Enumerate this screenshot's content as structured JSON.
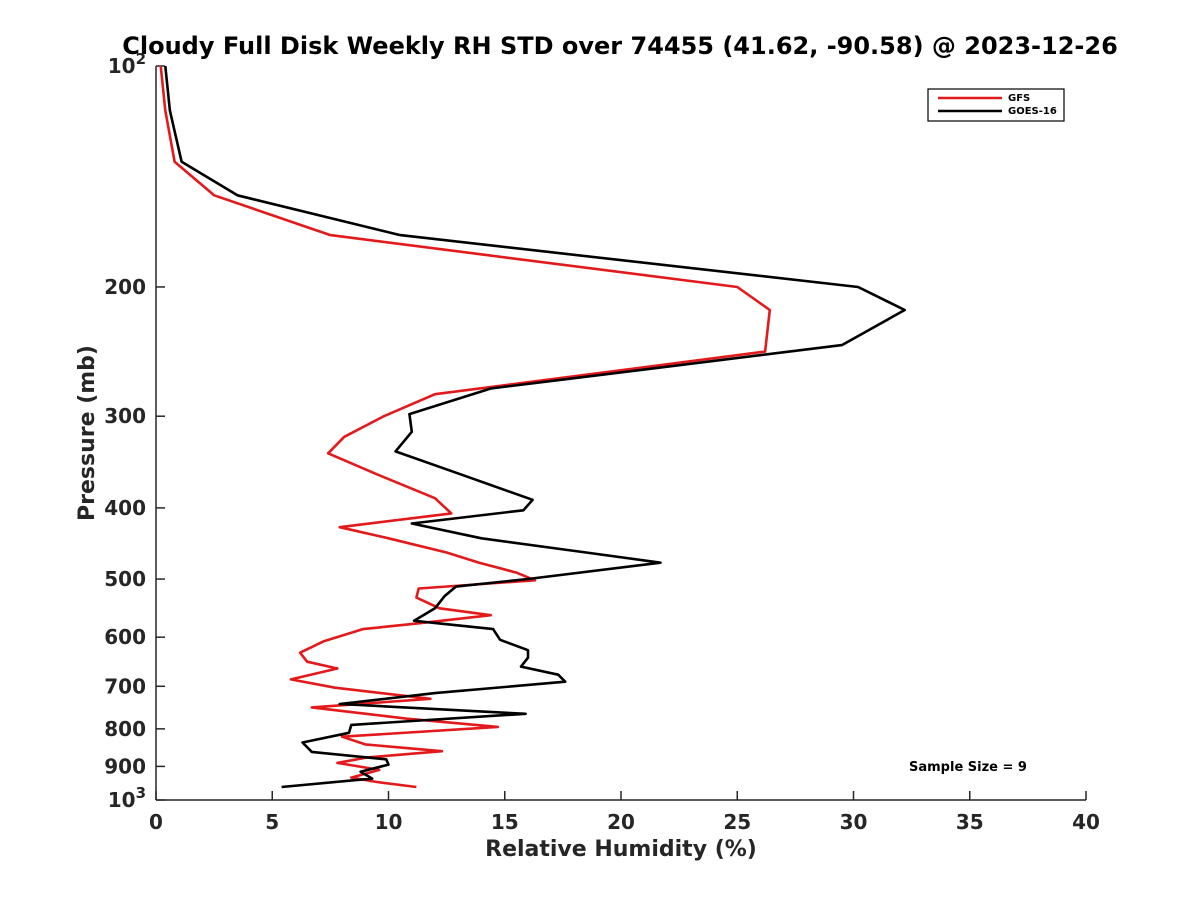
{
  "chart_data": {
    "type": "line",
    "title": "Cloudy Full Disk Weekly RH STD over 74455 (41.62, -90.58) @ 2023-12-26",
    "xlabel": "Relative Humidity (%)",
    "ylabel": "Pressure (mb)",
    "xlim": [
      0,
      40
    ],
    "ylim": [
      100,
      1000
    ],
    "yscale": "log",
    "y_reversed": true,
    "grid": false,
    "legend_position": "top-right",
    "x_ticks": [
      "0",
      "5",
      "10",
      "15",
      "20",
      "25",
      "30",
      "35",
      "40"
    ],
    "y_ticks": [
      {
        "value": 100,
        "base": "10",
        "exp": "2"
      },
      {
        "value": 200,
        "label": "200"
      },
      {
        "value": 300,
        "label": "300"
      },
      {
        "value": 400,
        "label": "400"
      },
      {
        "value": 500,
        "label": "500"
      },
      {
        "value": 600,
        "label": "600"
      },
      {
        "value": 700,
        "label": "700"
      },
      {
        "value": 800,
        "label": "800"
      },
      {
        "value": 900,
        "label": "900"
      },
      {
        "value": 1000,
        "base": "10",
        "exp": "3"
      }
    ],
    "annotation": "Sample Size = 9",
    "series": [
      {
        "name": "GFS",
        "color": "#e31a1c",
        "points": [
          [
            0.2,
            100
          ],
          [
            0.4,
            115
          ],
          [
            0.8,
            135
          ],
          [
            2.5,
            150
          ],
          [
            7.5,
            170
          ],
          [
            25.0,
            200
          ],
          [
            26.4,
            215
          ],
          [
            26.2,
            245
          ],
          [
            12.0,
            280
          ],
          [
            9.8,
            300
          ],
          [
            8.1,
            320
          ],
          [
            7.4,
            337
          ],
          [
            9.5,
            360
          ],
          [
            12.0,
            388
          ],
          [
            12.7,
            407
          ],
          [
            7.9,
            425
          ],
          [
            10.0,
            440
          ],
          [
            12.5,
            460
          ],
          [
            13.9,
            475
          ],
          [
            15.5,
            490
          ],
          [
            16.3,
            502
          ],
          [
            11.3,
            515
          ],
          [
            11.2,
            530
          ],
          [
            12.2,
            548
          ],
          [
            14.4,
            560
          ],
          [
            11.2,
            575
          ],
          [
            8.9,
            585
          ],
          [
            7.2,
            608
          ],
          [
            6.2,
            630
          ],
          [
            6.5,
            648
          ],
          [
            7.8,
            662
          ],
          [
            5.8,
            685
          ],
          [
            7.7,
            703
          ],
          [
            11.8,
            728
          ],
          [
            6.7,
            748
          ],
          [
            10.8,
            775
          ],
          [
            14.7,
            795
          ],
          [
            8.0,
            820
          ],
          [
            9.0,
            840
          ],
          [
            12.3,
            858
          ],
          [
            9.1,
            875
          ],
          [
            7.8,
            890
          ],
          [
            9.6,
            910
          ],
          [
            8.4,
            932
          ],
          [
            9.5,
            945
          ],
          [
            11.2,
            960
          ]
        ]
      },
      {
        "name": "GOES-16",
        "color": "#000000",
        "points": [
          [
            0.4,
            100
          ],
          [
            0.6,
            115
          ],
          [
            1.1,
            135
          ],
          [
            3.5,
            150
          ],
          [
            10.5,
            170
          ],
          [
            30.2,
            200
          ],
          [
            32.2,
            215
          ],
          [
            29.5,
            240
          ],
          [
            14.4,
            275
          ],
          [
            10.9,
            298
          ],
          [
            11.0,
            315
          ],
          [
            10.3,
            335
          ],
          [
            13.1,
            360
          ],
          [
            16.2,
            390
          ],
          [
            15.8,
            403
          ],
          [
            11.0,
            420
          ],
          [
            14.0,
            440
          ],
          [
            18.5,
            460
          ],
          [
            21.7,
            475
          ],
          [
            16.0,
            500
          ],
          [
            12.9,
            512
          ],
          [
            12.4,
            528
          ],
          [
            12.0,
            548
          ],
          [
            11.1,
            570
          ],
          [
            14.5,
            585
          ],
          [
            14.8,
            605
          ],
          [
            16.0,
            625
          ],
          [
            16.0,
            640
          ],
          [
            15.7,
            658
          ],
          [
            17.3,
            675
          ],
          [
            17.6,
            690
          ],
          [
            12.0,
            715
          ],
          [
            7.9,
            740
          ],
          [
            15.9,
            763
          ],
          [
            8.4,
            790
          ],
          [
            8.3,
            810
          ],
          [
            6.3,
            835
          ],
          [
            6.7,
            860
          ],
          [
            9.9,
            880
          ],
          [
            10.0,
            895
          ],
          [
            8.8,
            915
          ],
          [
            9.3,
            935
          ],
          [
            5.4,
            960
          ]
        ]
      }
    ]
  }
}
